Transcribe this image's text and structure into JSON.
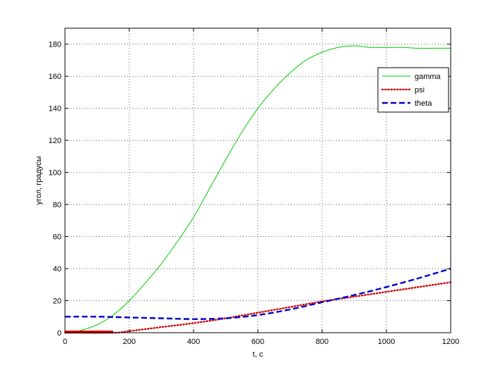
{
  "chart_data": {
    "type": "line",
    "xlabel": "t, c",
    "ylabel": "угол, градусы",
    "xlim": [
      0,
      1200
    ],
    "ylim": [
      0,
      190
    ],
    "xticks": [
      0,
      200,
      400,
      600,
      800,
      1000,
      1200
    ],
    "yticks": [
      0,
      20,
      40,
      60,
      80,
      100,
      120,
      140,
      160,
      180
    ],
    "grid": true,
    "legend_position": "top-right",
    "series": [
      {
        "name": "gamma",
        "color": "#00cc00",
        "style": "solid",
        "x": [
          0,
          50,
          100,
          150,
          200,
          250,
          300,
          350,
          400,
          450,
          500,
          550,
          600,
          650,
          700,
          750,
          800,
          850,
          900,
          950,
          1000,
          1050,
          1100,
          1150,
          1200
        ],
        "y": [
          0,
          1.5,
          5,
          11,
          20,
          31,
          43,
          57,
          72,
          90,
          108,
          125,
          140,
          152,
          162,
          170,
          175,
          178,
          179,
          178,
          178,
          178,
          177.5,
          177.5,
          177.5
        ]
      },
      {
        "name": "psi",
        "color": "#cc0000",
        "style": "dotted",
        "x": [
          0,
          150,
          200,
          300,
          400,
          500,
          600,
          700,
          800,
          900,
          1000,
          1100,
          1200
        ],
        "y": [
          0,
          0,
          1,
          3.5,
          6,
          9,
          12.5,
          16,
          19.5,
          22.5,
          25.5,
          28.5,
          31.5
        ]
      },
      {
        "name": "theta",
        "color": "#0000cc",
        "style": "dashed",
        "x": [
          0,
          100,
          200,
          300,
          400,
          500,
          600,
          700,
          800,
          900,
          1000,
          1100,
          1200
        ],
        "y": [
          10,
          10,
          9.5,
          9,
          8.5,
          9,
          11,
          14.5,
          19,
          23.5,
          28.5,
          34,
          40
        ]
      }
    ]
  }
}
